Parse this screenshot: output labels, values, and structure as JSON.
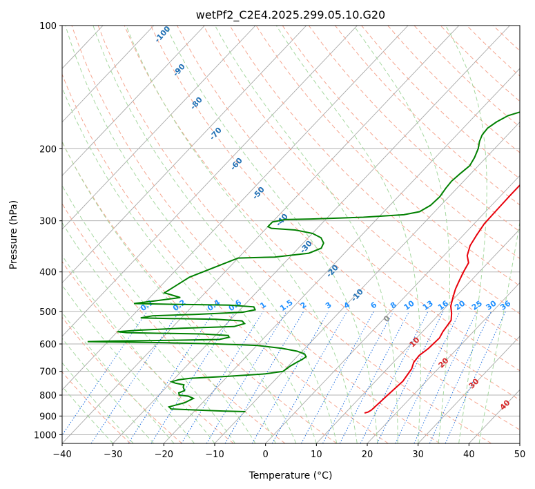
{
  "chart_data": {
    "type": "line",
    "subtype": "skew-T log-p diagram",
    "title": "wetPf2_C2E4.2025.299.05.10.G20",
    "xlabel": "Temperature (°C)",
    "ylabel": "Pressure (hPa)",
    "xlim": [
      -40,
      50
    ],
    "ylim": [
      1050,
      100
    ],
    "y_scale": "log",
    "grid": true,
    "x_ticks": [
      "−40",
      "−30",
      "−20",
      "−10",
      "0",
      "10",
      "20",
      "30",
      "40",
      "50"
    ],
    "y_ticks": [
      "100",
      "200",
      "300",
      "400",
      "500",
      "600",
      "700",
      "800",
      "900",
      "1000"
    ],
    "series": [
      {
        "color": "#e8000b",
        "points": [
          [
            13.8,
            885
          ],
          [
            14.3,
            880
          ],
          [
            14.6,
            870
          ],
          [
            15.0,
            800
          ],
          [
            15.4,
            740
          ],
          [
            14.8,
            690
          ],
          [
            14.0,
            665
          ],
          [
            13.8,
            640
          ],
          [
            14.3,
            615
          ],
          [
            14.5,
            580
          ],
          [
            14.0,
            560
          ],
          [
            13.5,
            525
          ],
          [
            12.3,
            505
          ],
          [
            10.8,
            485
          ],
          [
            9.5,
            460
          ],
          [
            8.5,
            440
          ],
          [
            7.7,
            420
          ],
          [
            6.9,
            400
          ],
          [
            6.2,
            380
          ],
          [
            4.6,
            365
          ],
          [
            3.3,
            345
          ],
          [
            2.6,
            325
          ],
          [
            2.0,
            305
          ],
          [
            1.9,
            285
          ],
          [
            1.8,
            260
          ],
          [
            1.8,
            230
          ],
          [
            2.1,
            210
          ],
          [
            3.0,
            200
          ],
          [
            4.5,
            190
          ],
          [
            5.7,
            180
          ],
          [
            6.5,
            170
          ],
          [
            7.3,
            160
          ],
          [
            7.8,
            150
          ],
          [
            8.3,
            140
          ],
          [
            8.9,
            132
          ],
          [
            9.5,
            125
          ],
          [
            10.0,
            120
          ],
          [
            10.4,
            115
          ],
          [
            11.3,
            111
          ],
          [
            12.3,
            107
          ],
          [
            13.3,
            103
          ],
          [
            14.0,
            100
          ]
        ]
      },
      {
        "color": "#008000",
        "points": [
          [
            -9.9,
            878
          ],
          [
            -14.5,
            875
          ],
          [
            -20.0,
            870
          ],
          [
            -25.0,
            865
          ],
          [
            -25.8,
            855
          ],
          [
            -23.5,
            835
          ],
          [
            -22.6,
            815
          ],
          [
            -24.0,
            805
          ],
          [
            -26.0,
            800
          ],
          [
            -26.5,
            790
          ],
          [
            -25.8,
            780
          ],
          [
            -26.7,
            765
          ],
          [
            -27.0,
            755
          ],
          [
            -29.0,
            748
          ],
          [
            -30.0,
            742
          ],
          [
            -29.0,
            734
          ],
          [
            -27.0,
            728
          ],
          [
            -20.0,
            720
          ],
          [
            -13.0,
            710
          ],
          [
            -10.0,
            700
          ],
          [
            -9.6,
            680
          ],
          [
            -9.0,
            665
          ],
          [
            -8.5,
            655
          ],
          [
            -8.2,
            645
          ],
          [
            -9.0,
            635
          ],
          [
            -11.0,
            625
          ],
          [
            -14.5,
            615
          ],
          [
            -20.0,
            605
          ],
          [
            -28.0,
            600
          ],
          [
            -38.0,
            596
          ],
          [
            -46.0,
            594
          ],
          [
            -50.0,
            593
          ],
          [
            -54.0,
            592
          ],
          [
            -49.0,
            590
          ],
          [
            -43.0,
            589
          ],
          [
            -35.0,
            587
          ],
          [
            -28.5,
            585
          ],
          [
            -27.0,
            578
          ],
          [
            -27.5,
            572
          ],
          [
            -33.0,
            567
          ],
          [
            -42.0,
            565
          ],
          [
            -48.0,
            563
          ],
          [
            -50.0,
            560
          ],
          [
            -46.0,
            555
          ],
          [
            -38.0,
            549
          ],
          [
            -28.0,
            544
          ],
          [
            -26.5,
            535
          ],
          [
            -27.5,
            527
          ],
          [
            -33.0,
            522
          ],
          [
            -42.0,
            520
          ],
          [
            -48.0,
            518
          ],
          [
            -46.0,
            512
          ],
          [
            -38.0,
            508
          ],
          [
            -29.0,
            502
          ],
          [
            -27.0,
            495
          ],
          [
            -27.8,
            487
          ],
          [
            -33.0,
            482
          ],
          [
            -44.0,
            480
          ],
          [
            -52.0,
            478
          ],
          [
            -48.0,
            470
          ],
          [
            -44.0,
            462
          ],
          [
            -48.0,
            450
          ],
          [
            -46.0,
            412
          ],
          [
            -40.0,
            370
          ],
          [
            -33.0,
            368
          ],
          [
            -27.0,
            360
          ],
          [
            -25.5,
            350
          ],
          [
            -26.0,
            340
          ],
          [
            -27.5,
            330
          ],
          [
            -30.0,
            322
          ],
          [
            -34.0,
            316
          ],
          [
            -39.0,
            313
          ],
          [
            -40.0,
            310
          ],
          [
            -40.0,
            302
          ],
          [
            -38.0,
            298
          ],
          [
            -33.0,
            297
          ],
          [
            -23.0,
            294
          ],
          [
            -15.5,
            290
          ],
          [
            -13.0,
            285
          ],
          [
            -12.0,
            275
          ],
          [
            -11.8,
            262
          ],
          [
            -12.2,
            250
          ],
          [
            -12.4,
            240
          ],
          [
            -12.1,
            230
          ],
          [
            -11.7,
            220
          ],
          [
            -12.3,
            210
          ],
          [
            -13.2,
            200
          ],
          [
            -14.3,
            192
          ],
          [
            -15.0,
            185
          ],
          [
            -15.2,
            178
          ],
          [
            -14.6,
            172
          ],
          [
            -13.5,
            166
          ],
          [
            -12.0,
            163
          ],
          [
            -10.0,
            160
          ],
          [
            -8.5,
            157
          ],
          [
            -7.4,
            153
          ],
          [
            -6.7,
            148
          ],
          [
            -5.9,
            141
          ],
          [
            -4.9,
            135
          ],
          [
            -3.8,
            129
          ],
          [
            -2.8,
            123
          ],
          [
            -1.8,
            117
          ],
          [
            -0.8,
            110
          ],
          [
            0.0,
            105
          ],
          [
            0.5,
            100
          ]
        ]
      }
    ],
    "mixing_ratio_labels": [
      "0.1",
      "0.2",
      "0.4",
      "0.6",
      "1",
      "1.5",
      "2",
      "3",
      "4",
      "6",
      "8",
      "10",
      "13",
      "16",
      "20",
      "25",
      "30",
      "36"
    ],
    "dry_adiabat_labels": [
      "-100",
      "-90",
      "-80",
      "-70",
      "-60",
      "-50",
      "-40",
      "-30",
      "-20",
      "-10",
      "0"
    ],
    "moist_adiabat_labels": [
      "10",
      "20",
      "30",
      "40"
    ]
  }
}
